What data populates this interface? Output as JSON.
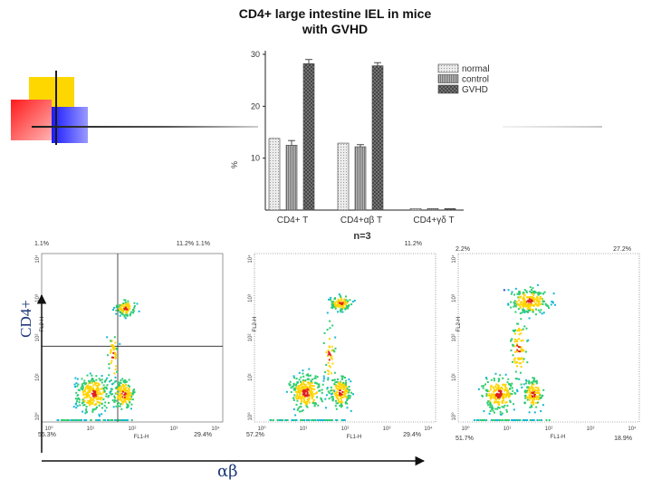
{
  "chart_data": [
    {
      "type": "bar",
      "title": "CD4+ large intestine IEL in mice",
      "subtitle": "with GVHD",
      "ylabel": "%",
      "ylim": [
        0,
        30
      ],
      "yticks": [
        "30",
        "20",
        "10"
      ],
      "categories": [
        "CD4+ T",
        "CD4+αβ T",
        "CD4+γδ T"
      ],
      "series": [
        {
          "name": "normal",
          "values": [
            13.8,
            12.9,
            0.3
          ],
          "errors": [
            0,
            0,
            0
          ],
          "fill": "#ebebeb"
        },
        {
          "name": "control",
          "values": [
            12.5,
            12.2,
            0.3
          ],
          "errors": [
            0.9,
            0.4,
            0
          ],
          "fill": "#b9b9b9"
        },
        {
          "name": "GVHD",
          "values": [
            28.2,
            27.8,
            0.3
          ],
          "errors": [
            0.8,
            0.6,
            0
          ],
          "fill": "#7d7d7d"
        }
      ],
      "note": "n=3",
      "legend_position": "top-right",
      "grid": false
    },
    {
      "type": "scatter",
      "panels": [
        {
          "corners": {
            "top_left": "1.1%",
            "top_right": "11.2% 1.1%",
            "bottom_left": "55.3%",
            "bottom_right": "29.4%"
          },
          "xlabel": "FL1-H",
          "ylabel": "FL2-H",
          "ticks": [
            "10⁰",
            "10¹",
            "10²",
            "10³",
            "10⁴"
          ],
          "quadrant_gates": true
        },
        {
          "corners": {
            "top_left": "",
            "top_right": "11.2%",
            "bottom_left": "57.2%",
            "bottom_right": "29.4%"
          },
          "xlabel": "FL1-H",
          "ylabel": "FL2-H",
          "ticks": [
            "10⁰",
            "10¹",
            "10²",
            "10³",
            "10⁴"
          ],
          "quadrant_gates": false
        },
        {
          "corners": {
            "top_left": "2.2%",
            "top_right": "27.2%",
            "bottom_left": "51.7%",
            "bottom_right": "18.9%"
          },
          "xlabel": "FL1-H",
          "ylabel": "FL2-H",
          "ticks": [
            "10⁰",
            "10¹",
            "10²",
            "10³",
            "10⁴"
          ],
          "quadrant_gates": false
        }
      ],
      "y_axis_label": "CD4+",
      "x_axis_label": "αβ"
    }
  ],
  "colors": {
    "deco_yellow": "#ffd700",
    "deco_red": "#ff2a2a",
    "deco_blue": "#1a1aff",
    "deco_line": "#1a1a1a",
    "accent_text": "#1f3a7a"
  }
}
